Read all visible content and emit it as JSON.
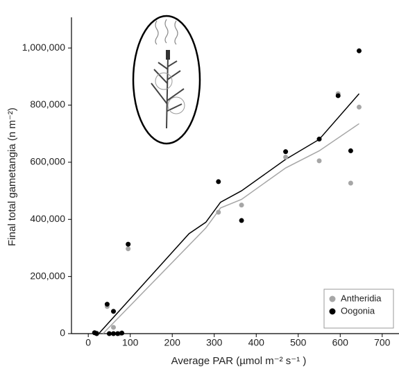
{
  "chart_data": {
    "type": "scatter",
    "x_label": "Average PAR (µmol m⁻² s⁻¹ )",
    "y_label": "Final total gametangia (n m⁻²)",
    "xlim": [
      -40,
      740
    ],
    "ylim": [
      0,
      1100000
    ],
    "xticks": [
      0,
      100,
      200,
      300,
      400,
      500,
      600,
      700
    ],
    "yticks": [
      0,
      {
        "value": 200000,
        "label": "200,000"
      },
      {
        "value": 400000,
        "label": "400,000"
      },
      {
        "value": 600000,
        "label": "600,000"
      },
      {
        "value": 800000,
        "label": "800,000"
      },
      {
        "value": 1000000,
        "label": "1,000,000"
      }
    ],
    "legend": "lower right",
    "series": [
      {
        "name": "Antheridia",
        "color": "#a6a6a6",
        "x": [
          15,
          20,
          45,
          60,
          75,
          95,
          310,
          365,
          470,
          550,
          595,
          625,
          645
        ],
        "values": [
          3000,
          2000,
          95000,
          22000,
          0,
          297000,
          425000,
          450000,
          618000,
          605000,
          840000,
          527000,
          793000
        ]
      },
      {
        "name": "Oogonia",
        "color": "#000000",
        "x": [
          15,
          20,
          45,
          50,
          60,
          60,
          70,
          80,
          95,
          310,
          365,
          470,
          550,
          595,
          625,
          645
        ],
        "values": [
          3000,
          0,
          103000,
          0,
          78000,
          0,
          0,
          2000,
          313000,
          532000,
          396000,
          637000,
          681000,
          833000,
          640000,
          990000
        ]
      }
    ],
    "fit_lines": [
      {
        "color": "#a6a6a6",
        "x": [
          35,
          280,
          300,
          315,
          365,
          470,
          550,
          645
        ],
        "values": [
          0,
          370000,
          410000,
          440000,
          470000,
          580000,
          640000,
          735000
        ]
      },
      {
        "color": "#000000",
        "x": [
          25,
          240,
          280,
          300,
          315,
          365,
          470,
          550,
          645
        ],
        "values": [
          0,
          350000,
          390000,
          430000,
          460000,
          500000,
          610000,
          680000,
          840000
        ]
      }
    ]
  }
}
